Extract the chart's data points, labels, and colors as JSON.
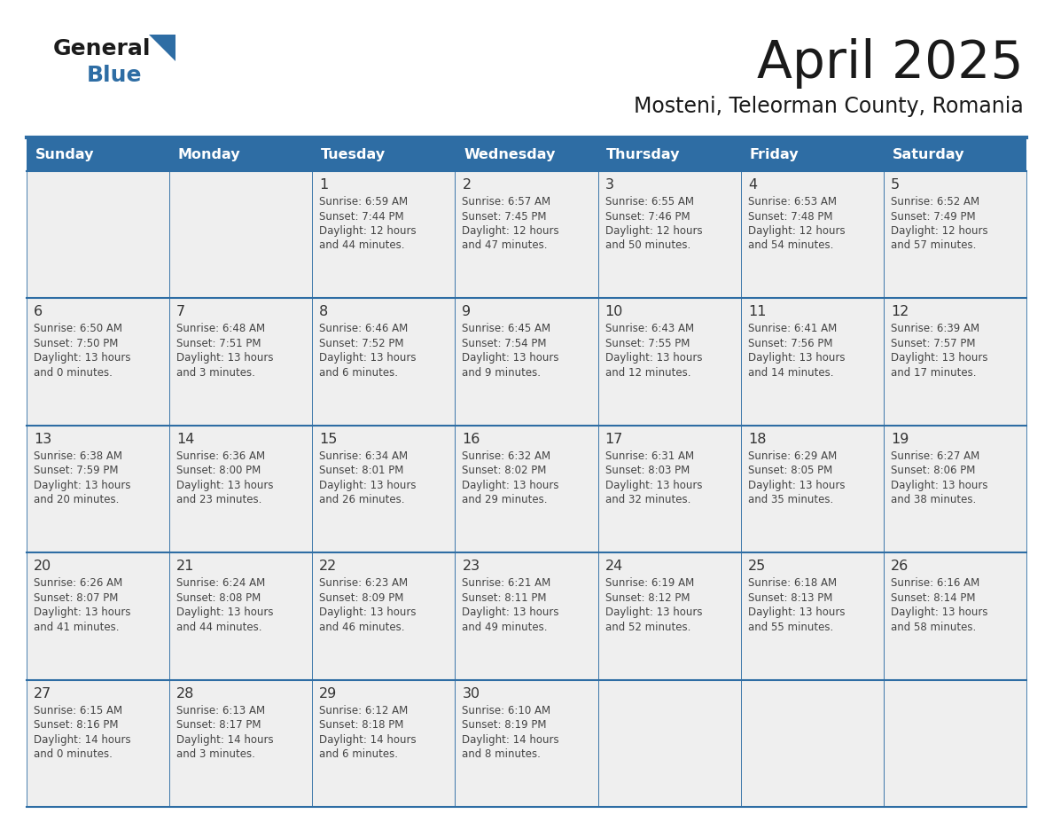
{
  "title": "April 2025",
  "subtitle": "Mosteni, Teleorman County, Romania",
  "header_bg_color": "#2E6DA4",
  "header_text_color": "#FFFFFF",
  "cell_bg_color": "#EFEFEF",
  "border_color": "#2E6DA4",
  "border_light": "#B0B8C8",
  "day_text_color": "#333333",
  "detail_text_color": "#444444",
  "title_color": "#1a1a1a",
  "subtitle_color": "#1a1a1a",
  "weekdays": [
    "Sunday",
    "Monday",
    "Tuesday",
    "Wednesday",
    "Thursday",
    "Friday",
    "Saturday"
  ],
  "days": [
    {
      "day": 1,
      "col": 2,
      "row": 0,
      "sunrise": "6:59 AM",
      "sunset": "7:44 PM",
      "daylight_l1": "Daylight: 12 hours",
      "daylight_l2": "and 44 minutes."
    },
    {
      "day": 2,
      "col": 3,
      "row": 0,
      "sunrise": "6:57 AM",
      "sunset": "7:45 PM",
      "daylight_l1": "Daylight: 12 hours",
      "daylight_l2": "and 47 minutes."
    },
    {
      "day": 3,
      "col": 4,
      "row": 0,
      "sunrise": "6:55 AM",
      "sunset": "7:46 PM",
      "daylight_l1": "Daylight: 12 hours",
      "daylight_l2": "and 50 minutes."
    },
    {
      "day": 4,
      "col": 5,
      "row": 0,
      "sunrise": "6:53 AM",
      "sunset": "7:48 PM",
      "daylight_l1": "Daylight: 12 hours",
      "daylight_l2": "and 54 minutes."
    },
    {
      "day": 5,
      "col": 6,
      "row": 0,
      "sunrise": "6:52 AM",
      "sunset": "7:49 PM",
      "daylight_l1": "Daylight: 12 hours",
      "daylight_l2": "and 57 minutes."
    },
    {
      "day": 6,
      "col": 0,
      "row": 1,
      "sunrise": "6:50 AM",
      "sunset": "7:50 PM",
      "daylight_l1": "Daylight: 13 hours",
      "daylight_l2": "and 0 minutes."
    },
    {
      "day": 7,
      "col": 1,
      "row": 1,
      "sunrise": "6:48 AM",
      "sunset": "7:51 PM",
      "daylight_l1": "Daylight: 13 hours",
      "daylight_l2": "and 3 minutes."
    },
    {
      "day": 8,
      "col": 2,
      "row": 1,
      "sunrise": "6:46 AM",
      "sunset": "7:52 PM",
      "daylight_l1": "Daylight: 13 hours",
      "daylight_l2": "and 6 minutes."
    },
    {
      "day": 9,
      "col": 3,
      "row": 1,
      "sunrise": "6:45 AM",
      "sunset": "7:54 PM",
      "daylight_l1": "Daylight: 13 hours",
      "daylight_l2": "and 9 minutes."
    },
    {
      "day": 10,
      "col": 4,
      "row": 1,
      "sunrise": "6:43 AM",
      "sunset": "7:55 PM",
      "daylight_l1": "Daylight: 13 hours",
      "daylight_l2": "and 12 minutes."
    },
    {
      "day": 11,
      "col": 5,
      "row": 1,
      "sunrise": "6:41 AM",
      "sunset": "7:56 PM",
      "daylight_l1": "Daylight: 13 hours",
      "daylight_l2": "and 14 minutes."
    },
    {
      "day": 12,
      "col": 6,
      "row": 1,
      "sunrise": "6:39 AM",
      "sunset": "7:57 PM",
      "daylight_l1": "Daylight: 13 hours",
      "daylight_l2": "and 17 minutes."
    },
    {
      "day": 13,
      "col": 0,
      "row": 2,
      "sunrise": "6:38 AM",
      "sunset": "7:59 PM",
      "daylight_l1": "Daylight: 13 hours",
      "daylight_l2": "and 20 minutes."
    },
    {
      "day": 14,
      "col": 1,
      "row": 2,
      "sunrise": "6:36 AM",
      "sunset": "8:00 PM",
      "daylight_l1": "Daylight: 13 hours",
      "daylight_l2": "and 23 minutes."
    },
    {
      "day": 15,
      "col": 2,
      "row": 2,
      "sunrise": "6:34 AM",
      "sunset": "8:01 PM",
      "daylight_l1": "Daylight: 13 hours",
      "daylight_l2": "and 26 minutes."
    },
    {
      "day": 16,
      "col": 3,
      "row": 2,
      "sunrise": "6:32 AM",
      "sunset": "8:02 PM",
      "daylight_l1": "Daylight: 13 hours",
      "daylight_l2": "and 29 minutes."
    },
    {
      "day": 17,
      "col": 4,
      "row": 2,
      "sunrise": "6:31 AM",
      "sunset": "8:03 PM",
      "daylight_l1": "Daylight: 13 hours",
      "daylight_l2": "and 32 minutes."
    },
    {
      "day": 18,
      "col": 5,
      "row": 2,
      "sunrise": "6:29 AM",
      "sunset": "8:05 PM",
      "daylight_l1": "Daylight: 13 hours",
      "daylight_l2": "and 35 minutes."
    },
    {
      "day": 19,
      "col": 6,
      "row": 2,
      "sunrise": "6:27 AM",
      "sunset": "8:06 PM",
      "daylight_l1": "Daylight: 13 hours",
      "daylight_l2": "and 38 minutes."
    },
    {
      "day": 20,
      "col": 0,
      "row": 3,
      "sunrise": "6:26 AM",
      "sunset": "8:07 PM",
      "daylight_l1": "Daylight: 13 hours",
      "daylight_l2": "and 41 minutes."
    },
    {
      "day": 21,
      "col": 1,
      "row": 3,
      "sunrise": "6:24 AM",
      "sunset": "8:08 PM",
      "daylight_l1": "Daylight: 13 hours",
      "daylight_l2": "and 44 minutes."
    },
    {
      "day": 22,
      "col": 2,
      "row": 3,
      "sunrise": "6:23 AM",
      "sunset": "8:09 PM",
      "daylight_l1": "Daylight: 13 hours",
      "daylight_l2": "and 46 minutes."
    },
    {
      "day": 23,
      "col": 3,
      "row": 3,
      "sunrise": "6:21 AM",
      "sunset": "8:11 PM",
      "daylight_l1": "Daylight: 13 hours",
      "daylight_l2": "and 49 minutes."
    },
    {
      "day": 24,
      "col": 4,
      "row": 3,
      "sunrise": "6:19 AM",
      "sunset": "8:12 PM",
      "daylight_l1": "Daylight: 13 hours",
      "daylight_l2": "and 52 minutes."
    },
    {
      "day": 25,
      "col": 5,
      "row": 3,
      "sunrise": "6:18 AM",
      "sunset": "8:13 PM",
      "daylight_l1": "Daylight: 13 hours",
      "daylight_l2": "and 55 minutes."
    },
    {
      "day": 26,
      "col": 6,
      "row": 3,
      "sunrise": "6:16 AM",
      "sunset": "8:14 PM",
      "daylight_l1": "Daylight: 13 hours",
      "daylight_l2": "and 58 minutes."
    },
    {
      "day": 27,
      "col": 0,
      "row": 4,
      "sunrise": "6:15 AM",
      "sunset": "8:16 PM",
      "daylight_l1": "Daylight: 14 hours",
      "daylight_l2": "and 0 minutes."
    },
    {
      "day": 28,
      "col": 1,
      "row": 4,
      "sunrise": "6:13 AM",
      "sunset": "8:17 PM",
      "daylight_l1": "Daylight: 14 hours",
      "daylight_l2": "and 3 minutes."
    },
    {
      "day": 29,
      "col": 2,
      "row": 4,
      "sunrise": "6:12 AM",
      "sunset": "8:18 PM",
      "daylight_l1": "Daylight: 14 hours",
      "daylight_l2": "and 6 minutes."
    },
    {
      "day": 30,
      "col": 3,
      "row": 4,
      "sunrise": "6:10 AM",
      "sunset": "8:19 PM",
      "daylight_l1": "Daylight: 14 hours",
      "daylight_l2": "and 8 minutes."
    }
  ]
}
